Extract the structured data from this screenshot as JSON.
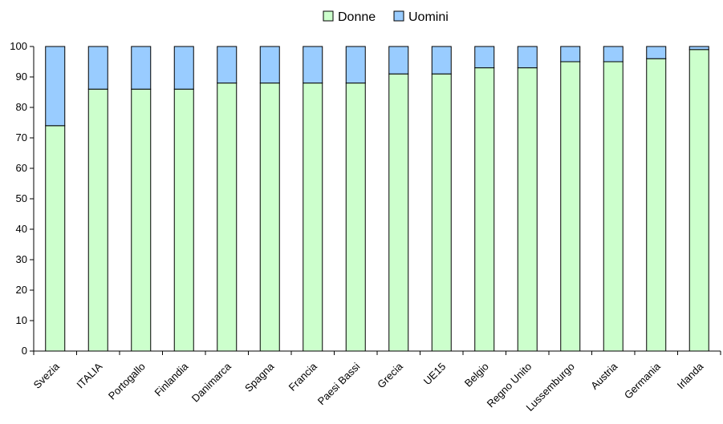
{
  "chart_data": {
    "type": "bar",
    "stacked": true,
    "categories": [
      "Svezia",
      "ITALIA",
      "Portogallo",
      "Finlandia",
      "Danimarca",
      "Spagna",
      "Francia",
      "Paesi Bassi",
      "Grecia",
      "UE15",
      "Belgio",
      "Regno Unito",
      "Lussemburgo",
      "Austria",
      "Germania",
      "Irlanda"
    ],
    "series": [
      {
        "name": "Donne",
        "color": "#ccffcc",
        "values": [
          74,
          86,
          86,
          86,
          88,
          88,
          88,
          88,
          91,
          91,
          93,
          93,
          95,
          95,
          96,
          99
        ]
      },
      {
        "name": "Uomini",
        "color": "#99ccff",
        "values": [
          26,
          14,
          14,
          14,
          12,
          12,
          12,
          12,
          9,
          9,
          7,
          7,
          5,
          5,
          4,
          1
        ]
      }
    ],
    "ylim": [
      0,
      100
    ],
    "yticks": [
      "0",
      "10",
      "20",
      "30",
      "40",
      "50",
      "60",
      "70",
      "80",
      "90",
      "100"
    ],
    "legend_position": "top-center",
    "grid": false
  }
}
